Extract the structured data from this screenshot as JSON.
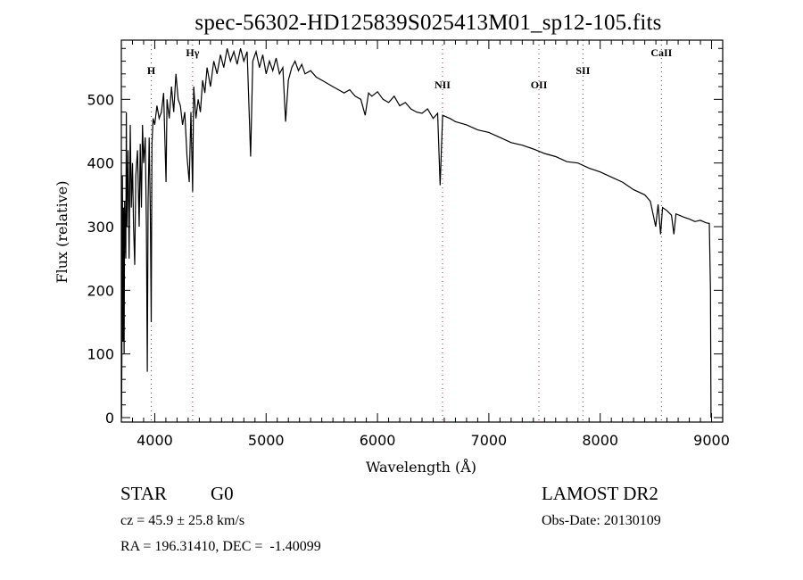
{
  "chart_data": {
    "type": "line",
    "title": "spec-56302-HD125839S025413M01_sp12-105.fits",
    "xlabel": "Wavelength (Å)",
    "ylabel": "Flux (relative)",
    "xlim": [
      3700,
      9100
    ],
    "ylim": [
      -7,
      593
    ],
    "xticks": [
      4000,
      5000,
      6000,
      7000,
      8000,
      9000
    ],
    "yticks": [
      0,
      100,
      200,
      300,
      400,
      500
    ],
    "grid": false,
    "line_color": "#000000",
    "marker_color": "#8b3a3a",
    "spectral_lines": [
      {
        "label": "H",
        "wavelength": 3969,
        "label_flux": 540
      },
      {
        "label": "Hγ",
        "wavelength": 4340,
        "label_flux": 568
      },
      {
        "label": "NII",
        "wavelength": 6584,
        "label_flux": 517
      },
      {
        "label": "OII",
        "wavelength": 7450,
        "label_flux": 517
      },
      {
        "label": "SII",
        "wavelength": 7845,
        "label_flux": 540
      },
      {
        "label": "CaII",
        "wavelength": 8550,
        "label_flux": 568
      }
    ],
    "series": [
      {
        "name": "flux",
        "points": [
          [
            3702,
            0
          ],
          [
            3705,
            90
          ],
          [
            3710,
            380
          ],
          [
            3715,
            120
          ],
          [
            3720,
            330
          ],
          [
            3725,
            100
          ],
          [
            3730,
            340
          ],
          [
            3740,
            250
          ],
          [
            3745,
            480
          ],
          [
            3750,
            300
          ],
          [
            3760,
            420
          ],
          [
            3770,
            250
          ],
          [
            3780,
            460
          ],
          [
            3790,
            330
          ],
          [
            3800,
            400
          ],
          [
            3810,
            300
          ],
          [
            3820,
            240
          ],
          [
            3830,
            380
          ],
          [
            3845,
            420
          ],
          [
            3860,
            300
          ],
          [
            3870,
            430
          ],
          [
            3880,
            330
          ],
          [
            3890,
            460
          ],
          [
            3900,
            400
          ],
          [
            3915,
            440
          ],
          [
            3925,
            300
          ],
          [
            3933,
            72
          ],
          [
            3940,
            340
          ],
          [
            3950,
            440
          ],
          [
            3960,
            320
          ],
          [
            3968,
            150
          ],
          [
            3975,
            430
          ],
          [
            3985,
            470
          ],
          [
            4000,
            460
          ],
          [
            4020,
            490
          ],
          [
            4040,
            470
          ],
          [
            4060,
            480
          ],
          [
            4080,
            510
          ],
          [
            4101,
            370
          ],
          [
            4110,
            500
          ],
          [
            4130,
            470
          ],
          [
            4150,
            520
          ],
          [
            4170,
            480
          ],
          [
            4190,
            540
          ],
          [
            4210,
            500
          ],
          [
            4230,
            490
          ],
          [
            4250,
            460
          ],
          [
            4270,
            480
          ],
          [
            4290,
            410
          ],
          [
            4310,
            370
          ],
          [
            4325,
            480
          ],
          [
            4340,
            355
          ],
          [
            4350,
            520
          ],
          [
            4370,
            470
          ],
          [
            4390,
            500
          ],
          [
            4410,
            480
          ],
          [
            4430,
            530
          ],
          [
            4450,
            510
          ],
          [
            4470,
            550
          ],
          [
            4500,
            520
          ],
          [
            4530,
            560
          ],
          [
            4560,
            540
          ],
          [
            4590,
            570
          ],
          [
            4620,
            550
          ],
          [
            4650,
            580
          ],
          [
            4680,
            560
          ],
          [
            4710,
            575
          ],
          [
            4740,
            555
          ],
          [
            4770,
            580
          ],
          [
            4800,
            560
          ],
          [
            4830,
            575
          ],
          [
            4861,
            410
          ],
          [
            4880,
            560
          ],
          [
            4910,
            575
          ],
          [
            4940,
            550
          ],
          [
            4970,
            570
          ],
          [
            5000,
            540
          ],
          [
            5030,
            560
          ],
          [
            5060,
            545
          ],
          [
            5090,
            565
          ],
          [
            5120,
            540
          ],
          [
            5150,
            550
          ],
          [
            5175,
            465
          ],
          [
            5200,
            530
          ],
          [
            5230,
            550
          ],
          [
            5260,
            560
          ],
          [
            5290,
            545
          ],
          [
            5320,
            555
          ],
          [
            5350,
            540
          ],
          [
            5400,
            545
          ],
          [
            5450,
            535
          ],
          [
            5500,
            530
          ],
          [
            5550,
            525
          ],
          [
            5600,
            520
          ],
          [
            5650,
            515
          ],
          [
            5700,
            510
          ],
          [
            5750,
            515
          ],
          [
            5800,
            505
          ],
          [
            5850,
            500
          ],
          [
            5890,
            475
          ],
          [
            5920,
            510
          ],
          [
            5950,
            505
          ],
          [
            6000,
            512
          ],
          [
            6050,
            500
          ],
          [
            6100,
            495
          ],
          [
            6150,
            505
          ],
          [
            6200,
            490
          ],
          [
            6250,
            495
          ],
          [
            6300,
            485
          ],
          [
            6350,
            480
          ],
          [
            6400,
            478
          ],
          [
            6450,
            485
          ],
          [
            6500,
            470
          ],
          [
            6540,
            478
          ],
          [
            6563,
            365
          ],
          [
            6585,
            475
          ],
          [
            6650,
            470
          ],
          [
            6700,
            465
          ],
          [
            6800,
            460
          ],
          [
            6900,
            452
          ],
          [
            7000,
            448
          ],
          [
            7100,
            440
          ],
          [
            7200,
            432
          ],
          [
            7300,
            428
          ],
          [
            7400,
            422
          ],
          [
            7500,
            415
          ],
          [
            7600,
            410
          ],
          [
            7700,
            402
          ],
          [
            7800,
            400
          ],
          [
            7900,
            392
          ],
          [
            8000,
            386
          ],
          [
            8100,
            378
          ],
          [
            8200,
            370
          ],
          [
            8300,
            358
          ],
          [
            8400,
            350
          ],
          [
            8450,
            340
          ],
          [
            8498,
            300
          ],
          [
            8520,
            335
          ],
          [
            8542,
            288
          ],
          [
            8560,
            330
          ],
          [
            8600,
            325
          ],
          [
            8640,
            318
          ],
          [
            8662,
            288
          ],
          [
            8680,
            320
          ],
          [
            8750,
            315
          ],
          [
            8800,
            312
          ],
          [
            8850,
            308
          ],
          [
            8900,
            310
          ],
          [
            8950,
            306
          ],
          [
            8980,
            305
          ],
          [
            8990,
            200
          ],
          [
            8995,
            0
          ]
        ]
      }
    ]
  },
  "info": {
    "object_type": "STAR",
    "subclass": "G0",
    "survey": "LAMOST DR2",
    "cz": "cz = 45.9 ± 25.8 km/s",
    "obs_date": "Obs-Date: 20130109",
    "coords": "RA = 196.31410, DEC =  -1.40099"
  }
}
